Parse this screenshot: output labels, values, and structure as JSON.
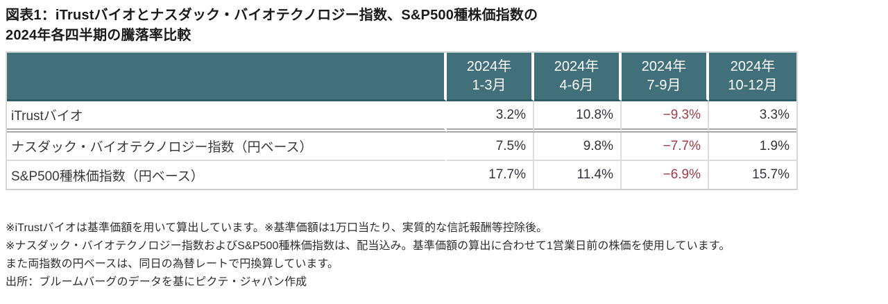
{
  "title": {
    "line1": "図表1：iTrustバイオとナスダック・バイオテクノロジー指数、S&P500種株価指数の",
    "line2": "2024年各四半期の騰落率比較"
  },
  "table": {
    "corner_label": "",
    "columns": [
      {
        "line1": "2024年",
        "line2": "1-3月"
      },
      {
        "line1": "2024年",
        "line2": "4-6月"
      },
      {
        "line1": "2024年",
        "line2": "7-9月"
      },
      {
        "line1": "2024年",
        "line2": "10-12月"
      }
    ],
    "rows": [
      {
        "label": "iTrustバイオ",
        "values": [
          "3.2%",
          "10.8%",
          "−9.3%",
          "3.3%"
        ],
        "separator_after": "double"
      },
      {
        "label": "ナスダック・バイオテクノロジー指数（円ベース）",
        "values": [
          "7.5%",
          "9.8%",
          "−7.7%",
          "1.9%"
        ],
        "separator_after": "single"
      },
      {
        "label": "S&P500種株価指数（円ベース）",
        "values": [
          "17.7%",
          "11.4%",
          "−6.9%",
          "15.7%"
        ],
        "separator_after": "none"
      }
    ]
  },
  "footnotes": {
    "line1": "※iTrustバイオは基準価額を用いて算出しています。※基準価額は1万口当たり、実質的な信託報酬等控除後。",
    "line2": "※ナスダック・バイオテクノロジー指数およびS&P500種株価指数は、配当込み。基準価額の算出に合わせて1営業日前の株価を使用しています。",
    "line3": "また両指数の円ベースは、同日の為替レートで円換算しています。",
    "line4": "出所：ブルームバーグのデータを基にピクテ・ジャパン作成"
  },
  "colors": {
    "header_bg": "#41707a",
    "header_bottom_border": "#2f5d66",
    "positive_value": "#33333d",
    "negative_value": "#a23b49",
    "grid_line": "#dcdcdc"
  },
  "chart_data": {
    "type": "table",
    "title": "図表1：iTrustバイオとナスダック・バイオテクノロジー指数、S&P500種株価指数の2024年各四半期の騰落率比較",
    "categories": [
      "2024年1-3月",
      "2024年4-6月",
      "2024年7-9月",
      "2024年10-12月"
    ],
    "series": [
      {
        "name": "iTrustバイオ",
        "values": [
          3.2,
          10.8,
          -9.3,
          3.3
        ]
      },
      {
        "name": "ナスダック・バイオテクノロジー指数（円ベース）",
        "values": [
          7.5,
          9.8,
          -7.7,
          1.9
        ]
      },
      {
        "name": "S&P500種株価指数（円ベース）",
        "values": [
          17.7,
          11.4,
          -6.9,
          15.7
        ]
      }
    ],
    "unit": "%"
  }
}
